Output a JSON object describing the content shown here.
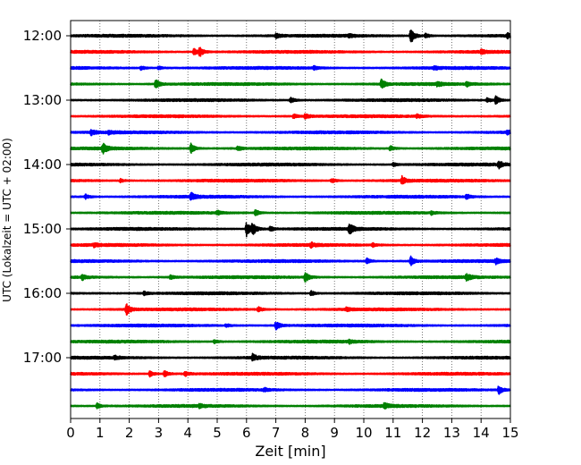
{
  "chart_data": {
    "type": "line",
    "title": "",
    "xlabel": "Zeit  [min]",
    "ylabel": "UTC (Lokalzeit = UTC + 02:00)",
    "xlim": [
      0,
      15
    ],
    "x_ticks": [
      "0",
      "1",
      "2",
      "3",
      "4",
      "5",
      "6",
      "7",
      "8",
      "9",
      "10",
      "11",
      "12",
      "13",
      "14",
      "15"
    ],
    "y_tick_labels": [
      "12:00",
      "13:00",
      "14:00",
      "15:00",
      "16:00",
      "17:00"
    ],
    "grid": "vertical dotted lines at each minute",
    "legend": "none",
    "trace_colors": [
      "#000000",
      "#ff0000",
      "#0000ff",
      "#008000"
    ],
    "series": [
      {
        "start": "12:00",
        "color": "black",
        "events": [
          [
            11.6,
            1.0
          ],
          [
            12.1,
            0.3
          ],
          [
            14.9,
            0.3
          ],
          [
            7.0,
            0.25
          ],
          [
            9.5,
            0.2
          ]
        ]
      },
      {
        "start": "12:15",
        "color": "red",
        "events": [
          [
            4.4,
            0.55
          ],
          [
            4.2,
            0.4
          ],
          [
            14.0,
            0.2
          ]
        ]
      },
      {
        "start": "12:30",
        "color": "blue",
        "events": [
          [
            2.4,
            0.25
          ],
          [
            3.0,
            0.2
          ],
          [
            8.3,
            0.2
          ],
          [
            12.4,
            0.2
          ]
        ]
      },
      {
        "start": "12:45",
        "color": "green",
        "events": [
          [
            2.9,
            0.6
          ],
          [
            10.6,
            0.6
          ],
          [
            12.5,
            0.25
          ],
          [
            13.5,
            0.25
          ]
        ]
      },
      {
        "start": "13:00",
        "color": "black",
        "events": [
          [
            7.5,
            0.4
          ],
          [
            14.5,
            0.5
          ],
          [
            14.2,
            0.3
          ]
        ]
      },
      {
        "start": "13:15",
        "color": "red",
        "events": [
          [
            8.0,
            0.3
          ],
          [
            7.6,
            0.25
          ],
          [
            11.8,
            0.2
          ]
        ]
      },
      {
        "start": "13:30",
        "color": "blue",
        "events": [
          [
            0.7,
            0.3
          ],
          [
            1.3,
            0.2
          ],
          [
            14.9,
            0.2
          ]
        ]
      },
      {
        "start": "13:45",
        "color": "green",
        "events": [
          [
            1.1,
            0.6
          ],
          [
            4.1,
            0.6
          ],
          [
            10.9,
            0.35
          ],
          [
            5.7,
            0.25
          ]
        ]
      },
      {
        "start": "14:00",
        "color": "black",
        "events": [
          [
            14.6,
            0.45
          ],
          [
            11.0,
            0.2
          ]
        ]
      },
      {
        "start": "14:15",
        "color": "red",
        "events": [
          [
            11.3,
            0.5
          ],
          [
            8.9,
            0.3
          ],
          [
            1.7,
            0.2
          ]
        ]
      },
      {
        "start": "14:30",
        "color": "blue",
        "events": [
          [
            4.1,
            0.45
          ],
          [
            0.5,
            0.3
          ],
          [
            13.5,
            0.3
          ]
        ]
      },
      {
        "start": "14:45",
        "color": "green",
        "events": [
          [
            6.3,
            0.35
          ],
          [
            5.0,
            0.25
          ],
          [
            12.3,
            0.2
          ]
        ]
      },
      {
        "start": "15:00",
        "color": "black",
        "events": [
          [
            6.0,
            0.9
          ],
          [
            6.2,
            0.7
          ],
          [
            9.5,
            0.7
          ],
          [
            6.8,
            0.3
          ]
        ]
      },
      {
        "start": "15:15",
        "color": "red",
        "events": [
          [
            8.2,
            0.25
          ],
          [
            10.3,
            0.2
          ],
          [
            0.8,
            0.2
          ]
        ]
      },
      {
        "start": "15:30",
        "color": "blue",
        "events": [
          [
            11.6,
            0.55
          ],
          [
            10.1,
            0.35
          ],
          [
            14.5,
            0.3
          ]
        ]
      },
      {
        "start": "15:45",
        "color": "green",
        "events": [
          [
            8.0,
            0.6
          ],
          [
            13.5,
            0.4
          ],
          [
            0.4,
            0.3
          ],
          [
            3.4,
            0.25
          ]
        ]
      },
      {
        "start": "16:00",
        "color": "black",
        "events": [
          [
            8.2,
            0.3
          ],
          [
            2.5,
            0.2
          ]
        ]
      },
      {
        "start": "16:15",
        "color": "red",
        "events": [
          [
            1.9,
            0.7
          ],
          [
            6.4,
            0.3
          ],
          [
            9.4,
            0.2
          ]
        ]
      },
      {
        "start": "16:30",
        "color": "blue",
        "events": [
          [
            7.0,
            0.55
          ],
          [
            5.3,
            0.2
          ]
        ]
      },
      {
        "start": "16:45",
        "color": "green",
        "events": [
          [
            4.9,
            0.25
          ],
          [
            9.5,
            0.2
          ]
        ]
      },
      {
        "start": "17:00",
        "color": "black",
        "events": [
          [
            6.2,
            0.45
          ],
          [
            1.5,
            0.2
          ]
        ]
      },
      {
        "start": "17:15",
        "color": "red",
        "events": [
          [
            3.2,
            0.4
          ],
          [
            2.7,
            0.35
          ],
          [
            3.9,
            0.3
          ]
        ]
      },
      {
        "start": "17:30",
        "color": "blue",
        "events": [
          [
            14.6,
            0.55
          ],
          [
            6.6,
            0.2
          ]
        ]
      },
      {
        "start": "17:45",
        "color": "green",
        "events": [
          [
            0.9,
            0.35
          ],
          [
            10.7,
            0.35
          ],
          [
            4.4,
            0.2
          ]
        ]
      }
    ]
  }
}
